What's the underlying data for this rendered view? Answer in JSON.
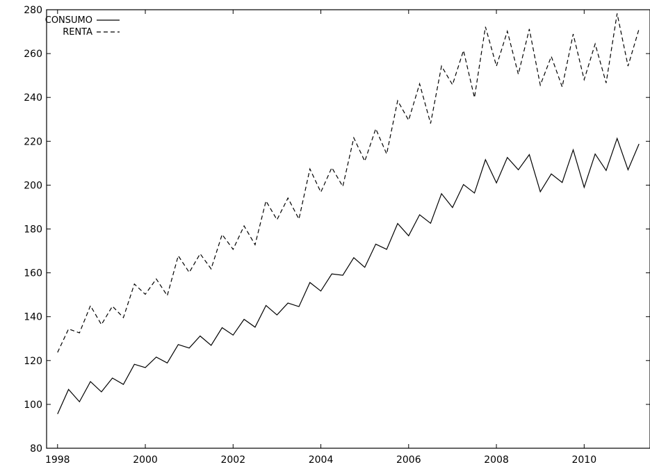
{
  "chart_data": {
    "type": "line",
    "title": "",
    "xlabel": "",
    "ylabel": "",
    "xlim": [
      1997.75,
      2011.5
    ],
    "ylim": [
      80,
      280
    ],
    "x_ticks": [
      1998,
      2000,
      2002,
      2004,
      2006,
      2008,
      2010
    ],
    "x_tick_labels": [
      "1998",
      "2000",
      "2002",
      "2004",
      "2006",
      "2008",
      "2010"
    ],
    "y_ticks": [
      80,
      100,
      120,
      140,
      160,
      180,
      200,
      220,
      240,
      260,
      280
    ],
    "y_tick_labels": [
      "80",
      "100",
      "120",
      "140",
      "160",
      "180",
      "200",
      "220",
      "240",
      "260",
      "280"
    ],
    "grid": false,
    "legend_position": "top-left",
    "frequency": "quarterly",
    "x_start": 1998,
    "series": [
      {
        "name": "CONSUMO",
        "style": "solid",
        "color": "#000000",
        "values": [
          95.6,
          106.8,
          101.2,
          110.4,
          105.7,
          112.0,
          109.1,
          118.3,
          116.8,
          121.6,
          118.9,
          127.3,
          125.7,
          131.2,
          126.9,
          135.0,
          131.6,
          138.8,
          135.2,
          145.1,
          140.8,
          146.2,
          144.6,
          155.6,
          151.7,
          159.5,
          158.9,
          166.9,
          162.5,
          173.1,
          170.7,
          182.5,
          176.9,
          186.5,
          182.6,
          196.1,
          189.8,
          200.3,
          196.4,
          211.6,
          201.0,
          212.6,
          207.0,
          213.9,
          197.0,
          205.1,
          201.2,
          216.1,
          199.0,
          214.2,
          206.7,
          221.3,
          207.0,
          218.8
        ]
      },
      {
        "name": "RENTA",
        "style": "dashed",
        "color": "#000000",
        "values": [
          123.7,
          134.4,
          132.6,
          145.0,
          136.4,
          144.8,
          139.6,
          154.9,
          150.2,
          157.2,
          149.6,
          167.8,
          160.2,
          168.7,
          161.8,
          177.5,
          170.7,
          181.4,
          172.8,
          192.8,
          184.2,
          194.1,
          184.5,
          207.4,
          196.8,
          208.0,
          199.4,
          221.6,
          210.9,
          225.7,
          214.2,
          238.5,
          229.6,
          246.2,
          228.1,
          254.3,
          245.8,
          261.4,
          239.9,
          272.2,
          254.3,
          270.2,
          250.6,
          271.2,
          245.6,
          258.7,
          244.8,
          268.9,
          248.1,
          264.4,
          246.6,
          278.3,
          254.3,
          271.2
        ]
      }
    ]
  }
}
